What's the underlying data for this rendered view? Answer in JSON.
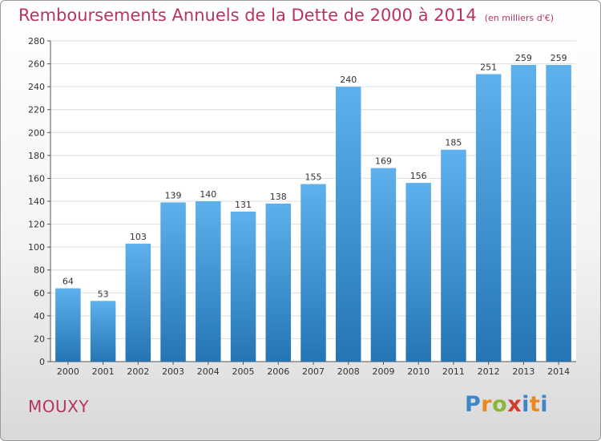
{
  "header": {
    "title": "Remboursements Annuels de la Dette de 2000 à 2014",
    "unit": "(en milliers d'€)"
  },
  "footer": {
    "city": "MOUXY",
    "logo_letters": [
      "P",
      "r",
      "o",
      "x",
      "i",
      "t",
      "i"
    ],
    "logo_colors": [
      "#3f86c8",
      "#e8891f",
      "#8ab63a",
      "#d53b2b",
      "#3f86c8",
      "#e8891f",
      "#3f86c8"
    ]
  },
  "colors": {
    "bar_light": "#5eb1ec",
    "bar_dark": "#2575b5",
    "title": "#b5355f",
    "grid": "#dddddd"
  },
  "chart_data": {
    "type": "bar",
    "title": "Remboursements Annuels de la Dette de 2000 à 2014",
    "xlabel": "",
    "ylabel": "",
    "categories": [
      "2000",
      "2001",
      "2002",
      "2003",
      "2004",
      "2005",
      "2006",
      "2007",
      "2008",
      "2009",
      "2010",
      "2011",
      "2012",
      "2013",
      "2014"
    ],
    "values": [
      64,
      53,
      103,
      139,
      140,
      131,
      138,
      155,
      240,
      169,
      156,
      185,
      251,
      259,
      259
    ],
    "ylim": [
      0,
      280
    ],
    "yticks": [
      0,
      20,
      40,
      60,
      80,
      100,
      120,
      140,
      160,
      180,
      200,
      220,
      240,
      260,
      280
    ],
    "grid": true
  }
}
